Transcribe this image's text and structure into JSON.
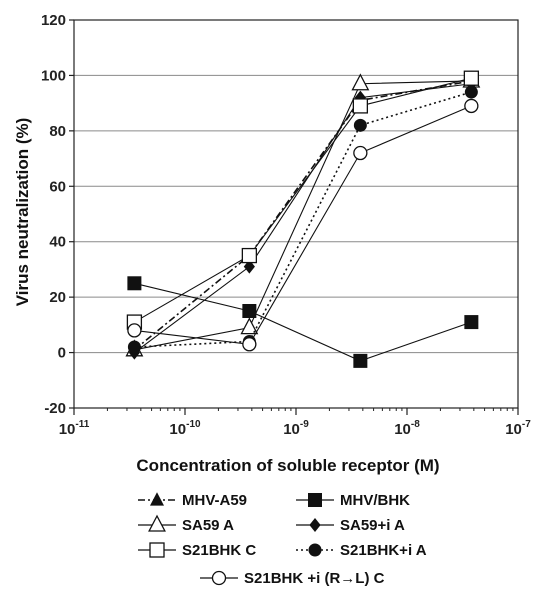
{
  "chart_data": {
    "type": "line",
    "title": "",
    "xlabel": "Concentration of soluble receptor (M)",
    "ylabel": "Virus neutralization (%)",
    "x_scale": "log",
    "xlim": [
      1e-11,
      1e-07
    ],
    "ylim": [
      -20,
      120
    ],
    "x_ticks": [
      {
        "base": "10",
        "exp": "-11",
        "value": 1e-11
      },
      {
        "base": "10",
        "exp": "-10",
        "value": 1e-10
      },
      {
        "base": "10",
        "exp": "-9",
        "value": 1e-09
      },
      {
        "base": "10",
        "exp": "-8",
        "value": 1e-08
      },
      {
        "base": "10",
        "exp": "-7",
        "value": 1e-07
      }
    ],
    "y_ticks": [
      "-20",
      "0",
      "20",
      "40",
      "60",
      "80",
      "100",
      "120"
    ],
    "y_tick_values": [
      -20,
      0,
      20,
      40,
      60,
      80,
      100,
      120
    ],
    "grid": "horizontal",
    "legend_position": "bottom",
    "x": [
      3.5e-11,
      3.8e-10,
      3.8e-09,
      3.8e-08
    ],
    "series": [
      {
        "name": "MHV-A59",
        "marker": "filled-triangle",
        "line": "dash-dot",
        "values": [
          1,
          35,
          91,
          98
        ]
      },
      {
        "name": "MHV/BHK",
        "marker": "filled-square",
        "line": "solid",
        "values": [
          25,
          15,
          -3,
          11
        ]
      },
      {
        "name": "SA59 A",
        "marker": "open-triangle",
        "line": "solid",
        "values": [
          1,
          9,
          97,
          98
        ]
      },
      {
        "name": "SA59+i A",
        "marker": "filled-diamond",
        "line": "solid",
        "values": [
          0,
          31,
          92,
          97
        ]
      },
      {
        "name": "S21BHK C",
        "marker": "open-square",
        "line": "solid",
        "values": [
          11,
          35,
          89,
          99
        ]
      },
      {
        "name": "S21BHK+i A",
        "marker": "filled-circle",
        "line": "dotted",
        "values": [
          2,
          4,
          82,
          94
        ]
      },
      {
        "name": "S21BHK +i (R→L) C",
        "marker": "open-circle",
        "line": "solid",
        "values": [
          8,
          3,
          72,
          89
        ]
      }
    ]
  }
}
